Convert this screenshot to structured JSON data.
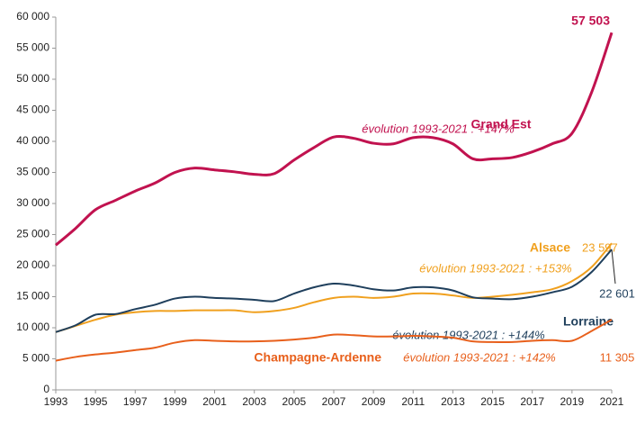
{
  "chart_data": {
    "type": "line",
    "x": [
      1993,
      1994,
      1995,
      1996,
      1997,
      1998,
      1999,
      2000,
      2001,
      2002,
      2003,
      2004,
      2005,
      2006,
      2007,
      2008,
      2009,
      2010,
      2011,
      2012,
      2013,
      2014,
      2015,
      2016,
      2017,
      2018,
      2019,
      2020,
      2021
    ],
    "xlim": [
      1993,
      2021
    ],
    "xticks": [
      1993,
      1995,
      1997,
      1999,
      2001,
      2003,
      2005,
      2007,
      2009,
      2011,
      2013,
      2015,
      2017,
      2019,
      2021
    ],
    "ylim": [
      0,
      60000
    ],
    "yticks": [
      0,
      {
        "value": 5000,
        "label": "5 000"
      },
      {
        "value": 10000,
        "label": "10 000"
      },
      {
        "value": 15000,
        "label": "15 000"
      },
      {
        "value": 20000,
        "label": "20 000"
      },
      {
        "value": 25000,
        "label": "25 000"
      },
      {
        "value": 30000,
        "label": "30 000"
      },
      {
        "value": 35000,
        "label": "35 000"
      },
      {
        "value": 40000,
        "label": "40 000"
      },
      {
        "value": 45000,
        "label": "45 000"
      },
      {
        "value": 50000,
        "label": "50 000"
      },
      {
        "value": 55000,
        "label": "55 000"
      },
      {
        "value": 60000,
        "label": "60 000"
      }
    ],
    "grid": false,
    "series": [
      {
        "name": "Grand Est",
        "color": "#c1124f",
        "note": "évolution 1993-2021  : +147%",
        "values": [
          23300,
          26000,
          29000,
          30500,
          32000,
          33300,
          35000,
          35700,
          35400,
          35100,
          34700,
          34800,
          37000,
          39000,
          40700,
          40500,
          39700,
          39600,
          40600,
          40600,
          39600,
          37200,
          37200,
          37400,
          38300,
          39600,
          41300,
          48000,
          57503
        ],
        "value_labels": [
          null,
          null,
          null,
          null,
          null,
          null,
          null,
          null,
          null,
          null,
          null,
          null,
          null,
          null,
          null,
          null,
          null,
          null,
          null,
          null,
          null,
          null,
          null,
          null,
          null,
          null,
          null,
          null,
          "57 503"
        ]
      },
      {
        "name": "Alsace",
        "color": "#f0a01e",
        "note": "évolution 1993-2021 : +153%",
        "values": [
          9300,
          10300,
          11300,
          12100,
          12500,
          12700,
          12700,
          12800,
          12800,
          12800,
          12500,
          12700,
          13200,
          14100,
          14800,
          15000,
          14800,
          15000,
          15500,
          15500,
          15200,
          14800,
          15000,
          15300,
          15700,
          16200,
          17500,
          19800,
          23597
        ],
        "value_labels": [
          null,
          null,
          null,
          null,
          null,
          null,
          null,
          null,
          null,
          null,
          null,
          null,
          null,
          null,
          null,
          null,
          null,
          null,
          null,
          null,
          null,
          null,
          null,
          null,
          null,
          null,
          null,
          null,
          "23 597"
        ]
      },
      {
        "name": "Lorraine",
        "color": "#1f3f5c",
        "note": "évolution 1993-2021 : +144%",
        "values": [
          9300,
          10400,
          12100,
          12200,
          13000,
          13700,
          14700,
          15000,
          14800,
          14700,
          14500,
          14300,
          15500,
          16500,
          17100,
          16800,
          16200,
          16000,
          16500,
          16500,
          16000,
          14900,
          14700,
          14600,
          15000,
          15700,
          16600,
          19000,
          22601
        ],
        "value_labels": [
          null,
          null,
          null,
          null,
          null,
          null,
          null,
          null,
          null,
          null,
          null,
          null,
          null,
          null,
          null,
          null,
          null,
          null,
          null,
          null,
          null,
          null,
          null,
          null,
          null,
          null,
          null,
          null,
          "22 601"
        ]
      },
      {
        "name": "Champagne-Ardenne",
        "color": "#e8601c",
        "note": "évolution 1993-2021 : +142%",
        "values": [
          4700,
          5300,
          5700,
          6000,
          6400,
          6800,
          7600,
          8000,
          7900,
          7800,
          7800,
          7900,
          8100,
          8400,
          8900,
          8800,
          8600,
          8600,
          8700,
          8600,
          8400,
          7800,
          7700,
          7700,
          7900,
          8000,
          7900,
          9500,
          11305
        ],
        "value_labels": [
          null,
          null,
          null,
          null,
          null,
          null,
          null,
          null,
          null,
          null,
          null,
          null,
          null,
          null,
          null,
          null,
          null,
          null,
          null,
          null,
          null,
          null,
          null,
          null,
          null,
          null,
          null,
          null,
          "11 305"
        ]
      }
    ]
  }
}
